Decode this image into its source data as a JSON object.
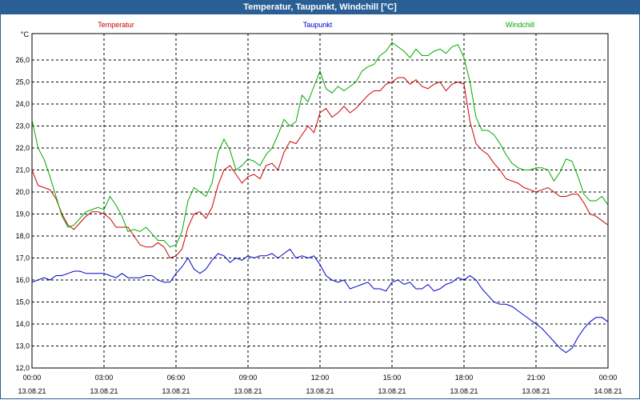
{
  "window": {
    "title": "Temperatur, Taupunkt, Windchill [°C]"
  },
  "chart_data": {
    "type": "line",
    "title": "Temperatur, Taupunkt, Windchill [°C]",
    "ylabel": "°C",
    "ylim": [
      12.0,
      27.2
    ],
    "yticks": [
      "12,0",
      "13,0",
      "14,0",
      "15,0",
      "16,0",
      "17,0",
      "18,0",
      "19,0",
      "20,0",
      "21,0",
      "22,0",
      "23,0",
      "24,0",
      "25,0",
      "26,0"
    ],
    "xlim": [
      0,
      24
    ],
    "xticks": [
      {
        "time": "00:00",
        "date": "13.08.21"
      },
      {
        "time": "03:00",
        "date": "13.08.21"
      },
      {
        "time": "06:00",
        "date": "13.08.21"
      },
      {
        "time": "09:00",
        "date": "13.08.21"
      },
      {
        "time": "12:00",
        "date": "13.08.21"
      },
      {
        "time": "15:00",
        "date": "13.08.21"
      },
      {
        "time": "18:00",
        "date": "13.08.21"
      },
      {
        "time": "21:00",
        "date": "13.08.21"
      },
      {
        "time": "00:00",
        "date": "14.08.21"
      }
    ],
    "grid": true,
    "legend_placement": "top",
    "series": [
      {
        "name": "Temperatur",
        "color": "#cc0000",
        "x": [
          0,
          0.25,
          0.5,
          0.75,
          1.0,
          1.25,
          1.5,
          1.75,
          2.0,
          2.25,
          2.5,
          2.75,
          3.0,
          3.25,
          3.5,
          3.75,
          4.0,
          4.25,
          4.5,
          4.75,
          5.0,
          5.25,
          5.5,
          5.75,
          6.0,
          6.25,
          6.5,
          6.75,
          7.0,
          7.25,
          7.5,
          7.75,
          8.0,
          8.25,
          8.5,
          8.75,
          9.0,
          9.25,
          9.5,
          9.75,
          10.0,
          10.25,
          10.5,
          10.75,
          11.0,
          11.25,
          11.5,
          11.75,
          12.0,
          12.25,
          12.5,
          12.75,
          13.0,
          13.25,
          13.5,
          13.75,
          14.0,
          14.25,
          14.5,
          14.75,
          15.0,
          15.25,
          15.5,
          15.75,
          16.0,
          16.25,
          16.5,
          16.75,
          17.0,
          17.25,
          17.5,
          17.75,
          18.0,
          18.25,
          18.5,
          18.75,
          19.0,
          19.25,
          19.5,
          19.75,
          20.0,
          20.25,
          20.5,
          20.75,
          21.0,
          21.25,
          21.5,
          21.75,
          22.0,
          22.25,
          22.5,
          22.75,
          23.0,
          23.25,
          23.5,
          23.75,
          24.0
        ],
        "values": [
          21.0,
          20.3,
          20.2,
          20.1,
          19.7,
          19.0,
          18.5,
          18.3,
          18.6,
          18.9,
          19.1,
          19.1,
          19.0,
          18.8,
          18.4,
          18.4,
          18.4,
          18.0,
          17.6,
          17.5,
          17.5,
          17.7,
          17.5,
          17.0,
          17.1,
          17.4,
          18.4,
          19.0,
          19.1,
          18.8,
          19.3,
          20.3,
          21.0,
          21.2,
          20.8,
          20.4,
          20.7,
          20.8,
          20.6,
          21.2,
          21.3,
          21.0,
          21.8,
          22.3,
          22.2,
          22.6,
          23.0,
          22.7,
          23.6,
          23.8,
          23.4,
          23.6,
          23.9,
          23.6,
          23.8,
          24.1,
          24.4,
          24.6,
          24.6,
          24.9,
          25.0,
          25.2,
          25.2,
          24.9,
          25.1,
          24.8,
          24.7,
          24.9,
          25.0,
          24.6,
          24.9,
          25.0,
          24.9,
          23.2,
          22.2,
          21.9,
          21.7,
          21.3,
          21.0,
          20.6,
          20.5,
          20.4,
          20.2,
          20.1,
          20.0,
          20.1,
          20.2,
          20.0,
          19.8,
          19.8,
          19.9,
          19.9,
          19.5,
          19.0,
          18.9,
          18.7,
          18.5
        ]
      },
      {
        "name": "Taupunkt",
        "color": "#0000cc",
        "x": [
          0,
          0.25,
          0.5,
          0.75,
          1.0,
          1.25,
          1.5,
          1.75,
          2.0,
          2.25,
          2.5,
          2.75,
          3.0,
          3.25,
          3.5,
          3.75,
          4.0,
          4.25,
          4.5,
          4.75,
          5.0,
          5.25,
          5.5,
          5.75,
          6.0,
          6.25,
          6.5,
          6.75,
          7.0,
          7.25,
          7.5,
          7.75,
          8.0,
          8.25,
          8.5,
          8.75,
          9.0,
          9.25,
          9.5,
          9.75,
          10.0,
          10.25,
          10.5,
          10.75,
          11.0,
          11.25,
          11.5,
          11.75,
          12.0,
          12.25,
          12.5,
          12.75,
          13.0,
          13.25,
          13.5,
          13.75,
          14.0,
          14.25,
          14.5,
          14.75,
          15.0,
          15.25,
          15.5,
          15.75,
          16.0,
          16.25,
          16.5,
          16.75,
          17.0,
          17.25,
          17.5,
          17.75,
          18.0,
          18.25,
          18.5,
          18.75,
          19.0,
          19.25,
          19.5,
          19.75,
          20.0,
          20.25,
          20.5,
          20.75,
          21.0,
          21.25,
          21.5,
          21.75,
          22.0,
          22.25,
          22.5,
          22.75,
          23.0,
          23.25,
          23.5,
          23.75,
          24.0
        ],
        "values": [
          15.9,
          16.0,
          16.1,
          16.0,
          16.2,
          16.2,
          16.3,
          16.4,
          16.4,
          16.3,
          16.3,
          16.3,
          16.3,
          16.2,
          16.1,
          16.3,
          16.1,
          16.1,
          16.1,
          16.2,
          16.2,
          16.0,
          15.9,
          15.9,
          16.3,
          16.6,
          17.0,
          16.5,
          16.3,
          16.5,
          16.9,
          17.2,
          17.1,
          16.8,
          17.0,
          16.9,
          17.1,
          17.0,
          17.1,
          17.1,
          17.2,
          17.0,
          17.2,
          17.4,
          17.0,
          17.1,
          17.0,
          17.1,
          16.7,
          16.2,
          16.0,
          15.9,
          16.0,
          15.6,
          15.7,
          15.8,
          15.9,
          15.6,
          15.6,
          15.5,
          15.9,
          16.0,
          15.8,
          15.9,
          15.6,
          15.6,
          15.8,
          15.5,
          15.6,
          15.8,
          15.9,
          16.1,
          16.0,
          16.2,
          16.0,
          15.6,
          15.3,
          15.0,
          14.9,
          14.9,
          14.8,
          14.6,
          14.4,
          14.2,
          14.0,
          13.8,
          13.5,
          13.2,
          12.9,
          12.7,
          12.9,
          13.4,
          13.8,
          14.1,
          14.3,
          14.3,
          14.1
        ]
      },
      {
        "name": "Windchill",
        "color": "#00aa00",
        "x": [
          0,
          0.25,
          0.5,
          0.75,
          1.0,
          1.25,
          1.5,
          1.75,
          2.0,
          2.25,
          2.5,
          2.75,
          3.0,
          3.25,
          3.5,
          3.75,
          4.0,
          4.25,
          4.5,
          4.75,
          5.0,
          5.25,
          5.5,
          5.75,
          6.0,
          6.25,
          6.5,
          6.75,
          7.0,
          7.25,
          7.5,
          7.75,
          8.0,
          8.25,
          8.5,
          8.75,
          9.0,
          9.25,
          9.5,
          9.75,
          10.0,
          10.25,
          10.5,
          10.75,
          11.0,
          11.25,
          11.5,
          11.75,
          12.0,
          12.25,
          12.5,
          12.75,
          13.0,
          13.25,
          13.5,
          13.75,
          14.0,
          14.25,
          14.5,
          14.75,
          15.0,
          15.25,
          15.5,
          15.75,
          16.0,
          16.25,
          16.5,
          16.75,
          17.0,
          17.25,
          17.5,
          17.75,
          18.0,
          18.25,
          18.5,
          18.75,
          19.0,
          19.25,
          19.5,
          19.75,
          20.0,
          20.25,
          20.5,
          20.75,
          21.0,
          21.25,
          21.5,
          21.75,
          22.0,
          22.25,
          22.5,
          22.75,
          23.0,
          23.25,
          23.5,
          23.75,
          24.0
        ],
        "values": [
          23.3,
          22.0,
          21.5,
          20.7,
          19.8,
          18.9,
          18.4,
          18.5,
          18.8,
          19.1,
          19.2,
          19.3,
          19.2,
          19.8,
          19.4,
          18.9,
          18.2,
          18.3,
          18.2,
          18.4,
          18.1,
          17.8,
          17.8,
          17.5,
          17.6,
          18.2,
          19.6,
          20.2,
          20.0,
          19.8,
          20.4,
          21.8,
          22.4,
          21.9,
          21.0,
          21.2,
          21.5,
          21.4,
          21.2,
          21.7,
          22.0,
          22.6,
          23.3,
          23.0,
          23.2,
          24.4,
          24.1,
          24.8,
          25.5,
          24.7,
          24.5,
          24.8,
          24.6,
          24.8,
          25.0,
          25.5,
          25.7,
          25.8,
          26.2,
          26.4,
          26.8,
          26.6,
          26.4,
          26.1,
          26.5,
          26.2,
          26.2,
          26.4,
          26.5,
          26.3,
          26.6,
          26.7,
          26.1,
          25.0,
          23.4,
          22.8,
          22.8,
          22.6,
          22.2,
          21.7,
          21.3,
          21.1,
          21.0,
          21.0,
          21.1,
          21.1,
          21.0,
          20.5,
          20.9,
          21.5,
          21.4,
          20.7,
          19.9,
          19.6,
          19.6,
          19.8,
          19.4
        ]
      }
    ]
  }
}
